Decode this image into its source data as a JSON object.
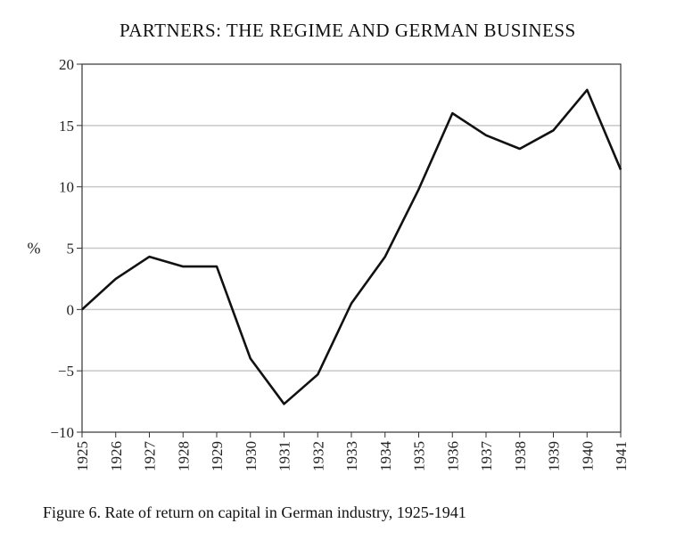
{
  "header_text": "PARTNERS: THE REGIME AND GERMAN BUSINESS",
  "caption": "Figure 6. Rate of return on capital in German industry, 1925-1941",
  "chart_data": {
    "type": "line",
    "title": "",
    "xlabel": "",
    "ylabel": "%",
    "ylim": [
      -10,
      20
    ],
    "yticks": [
      20,
      15,
      10,
      5,
      0,
      -5,
      -10
    ],
    "ytick_labels": [
      "20",
      "15",
      "10",
      "5",
      "0",
      "−5",
      "−10"
    ],
    "grid": true,
    "x": [
      "1925",
      "1926",
      "1927",
      "1928",
      "1929",
      "1930",
      "1931",
      "1932",
      "1933",
      "1934",
      "1935",
      "1936",
      "1937",
      "1938",
      "1939",
      "1940",
      "1941"
    ],
    "values": [
      0,
      2.5,
      4.3,
      3.5,
      3.5,
      -4,
      -7.7,
      -5.3,
      0.5,
      4.3,
      9.8,
      16,
      14.2,
      13.1,
      14.6,
      17.9,
      11.4
    ],
    "line_color": "#111111",
    "grid_color": "#c8c8c8"
  }
}
